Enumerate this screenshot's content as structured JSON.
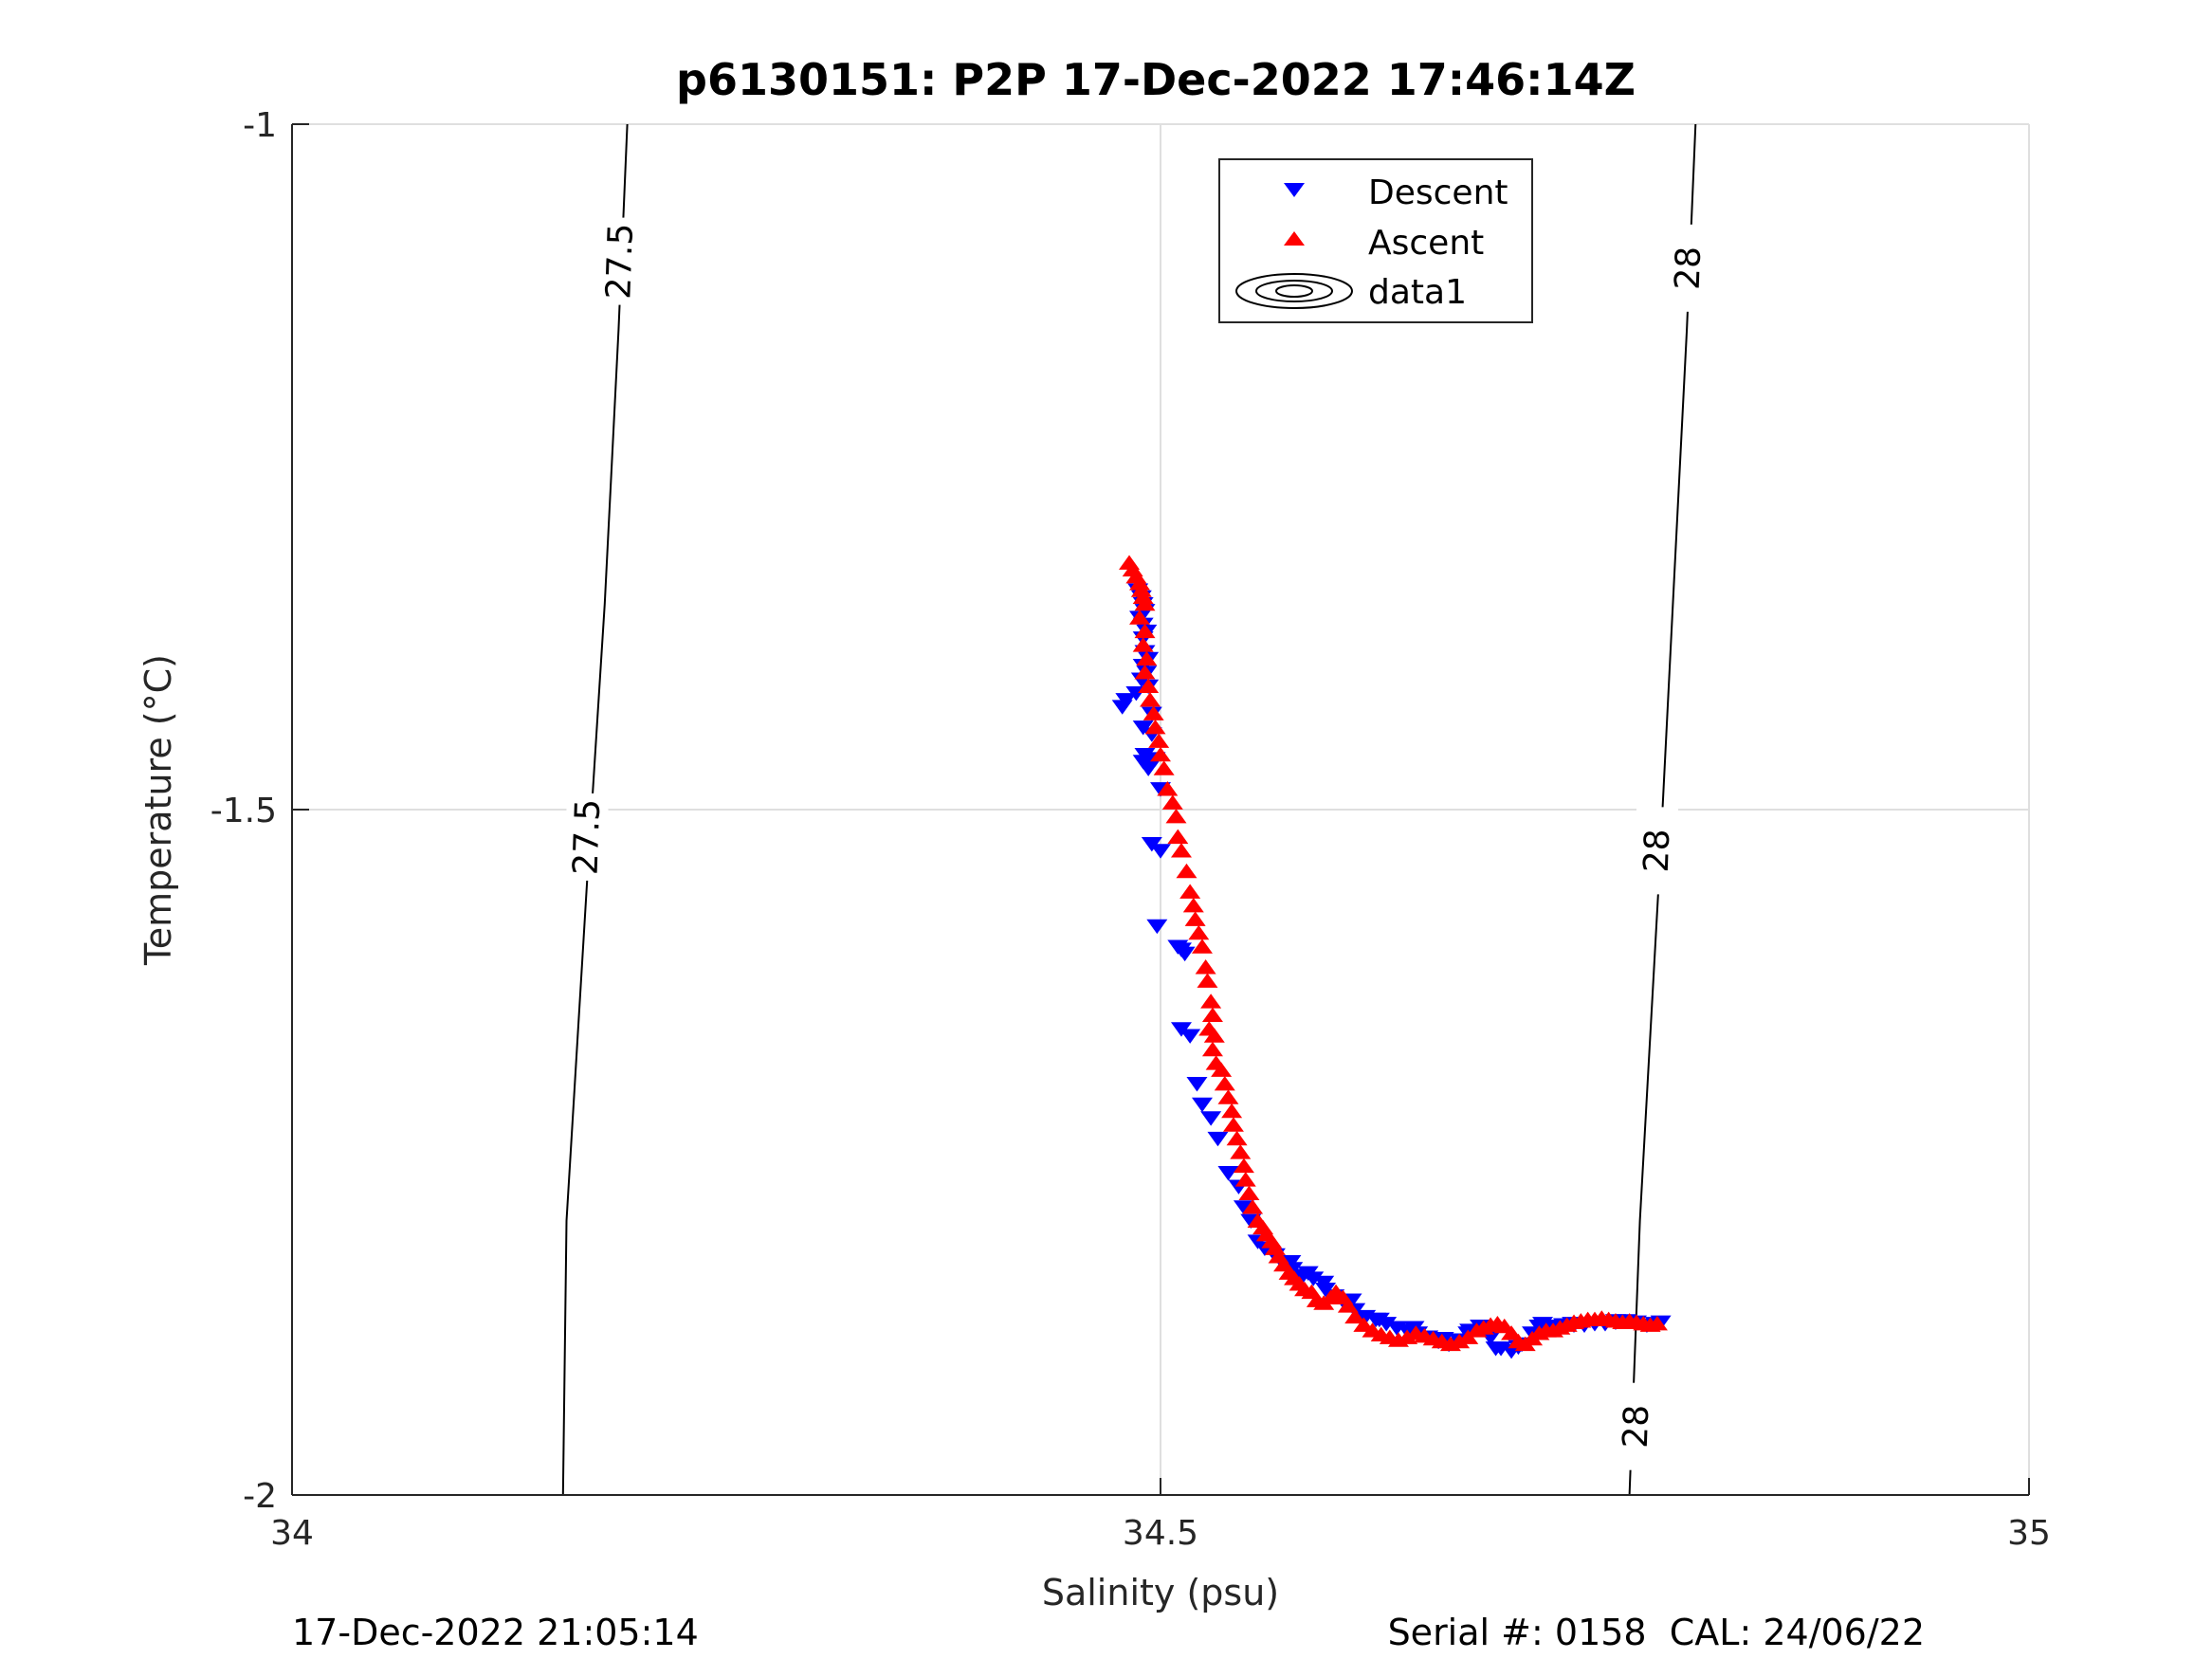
{
  "chart_data": {
    "type": "scatter",
    "title": "p6130151: P2P 17-Dec-2022 17:46:14Z",
    "xlabel": "Salinity (psu)",
    "ylabel": "Temperature (°C)",
    "xlim": [
      34,
      35
    ],
    "ylim": [
      -2,
      -1
    ],
    "xticks": [
      34,
      34.5,
      35
    ],
    "yticks": [
      -2,
      -1.5,
      -1
    ],
    "xtick_labels": [
      "34",
      "34.5",
      "35"
    ],
    "ytick_labels": [
      "-2",
      "-1.5",
      "-1"
    ],
    "grid": true,
    "legend": {
      "position": "top-center",
      "entries": [
        {
          "label": "Descent",
          "marker": "triangle-down",
          "color": "#0000ff"
        },
        {
          "label": "Ascent",
          "marker": "triangle-up",
          "color": "#ff0000"
        },
        {
          "label": "data1",
          "marker": "contour",
          "color": "#000000"
        }
      ]
    },
    "contours": [
      {
        "level": "27.5",
        "points": [
          [
            34.193,
            -1.0
          ],
          [
            34.188,
            -1.15
          ],
          [
            34.18,
            -1.35
          ],
          [
            34.17,
            -1.55
          ],
          [
            34.158,
            -1.8
          ],
          [
            34.156,
            -2.0
          ]
        ],
        "labels": [
          {
            "text": "27.5",
            "x": 34.189,
            "y": -1.1
          },
          {
            "text": "27.5",
            "x": 34.17,
            "y": -1.52
          }
        ]
      },
      {
        "level": "28",
        "points": [
          [
            34.808,
            -1.0
          ],
          [
            34.803,
            -1.15
          ],
          [
            34.795,
            -1.35
          ],
          [
            34.787,
            -1.55
          ],
          [
            34.776,
            -1.8
          ],
          [
            34.77,
            -2.0
          ]
        ],
        "labels": [
          {
            "text": "28",
            "x": 34.804,
            "y": -1.105
          },
          {
            "text": "28",
            "x": 34.786,
            "y": -1.53
          },
          {
            "text": "28",
            "x": 34.774,
            "y": -1.95
          }
        ]
      }
    ],
    "series": [
      {
        "name": "Descent",
        "marker": "triangle-down",
        "color": "#0000ff",
        "points": [
          [
            34.487,
            -1.34
          ],
          [
            34.489,
            -1.345
          ],
          [
            34.49,
            -1.35
          ],
          [
            34.491,
            -1.355
          ],
          [
            34.488,
            -1.36
          ],
          [
            34.49,
            -1.365
          ],
          [
            34.492,
            -1.37
          ],
          [
            34.49,
            -1.375
          ],
          [
            34.491,
            -1.385
          ],
          [
            34.493,
            -1.39
          ],
          [
            34.49,
            -1.395
          ],
          [
            34.492,
            -1.4
          ],
          [
            34.489,
            -1.405
          ],
          [
            34.493,
            -1.41
          ],
          [
            34.486,
            -1.415
          ],
          [
            34.48,
            -1.42
          ],
          [
            34.478,
            -1.425
          ],
          [
            34.495,
            -1.43
          ],
          [
            34.49,
            -1.44
          ],
          [
            34.495,
            -1.445
          ],
          [
            34.491,
            -1.46
          ],
          [
            34.49,
            -1.465
          ],
          [
            34.494,
            -1.465
          ],
          [
            34.497,
            -1.463
          ],
          [
            34.493,
            -1.47
          ],
          [
            34.5,
            -1.485
          ],
          [
            34.495,
            -1.525
          ],
          [
            34.5,
            -1.53
          ],
          [
            34.498,
            -1.585
          ],
          [
            34.51,
            -1.6
          ],
          [
            34.512,
            -1.602
          ],
          [
            34.514,
            -1.605
          ],
          [
            34.512,
            -1.66
          ],
          [
            34.517,
            -1.665
          ],
          [
            34.521,
            -1.7
          ],
          [
            34.524,
            -1.715
          ],
          [
            34.529,
            -1.725
          ],
          [
            34.533,
            -1.74
          ],
          [
            34.539,
            -1.765
          ],
          [
            34.545,
            -1.775
          ],
          [
            34.548,
            -1.79
          ],
          [
            34.552,
            -1.8
          ],
          [
            34.556,
            -1.815
          ],
          [
            34.56,
            -1.82
          ],
          [
            34.566,
            -1.825
          ],
          [
            34.57,
            -1.83
          ],
          [
            34.576,
            -1.835
          ],
          [
            34.582,
            -1.84
          ],
          [
            34.588,
            -1.842
          ],
          [
            34.594,
            -1.845
          ],
          [
            34.6,
            -1.855
          ],
          [
            34.606,
            -1.86
          ],
          [
            34.612,
            -1.865
          ],
          [
            34.618,
            -1.87
          ],
          [
            34.624,
            -1.872
          ],
          [
            34.63,
            -1.875
          ],
          [
            34.636,
            -1.878
          ],
          [
            34.642,
            -1.88
          ],
          [
            34.648,
            -1.882
          ],
          [
            34.654,
            -1.885
          ],
          [
            34.66,
            -1.888
          ],
          [
            34.666,
            -1.89
          ],
          [
            34.672,
            -1.887
          ],
          [
            34.678,
            -1.88
          ],
          [
            34.684,
            -1.877
          ],
          [
            34.69,
            -1.885
          ],
          [
            34.696,
            -1.893
          ],
          [
            34.702,
            -1.895
          ],
          [
            34.708,
            -1.89
          ],
          [
            34.714,
            -1.882
          ],
          [
            34.72,
            -1.875
          ],
          [
            34.726,
            -1.877
          ],
          [
            34.732,
            -1.876
          ],
          [
            34.738,
            -1.876
          ],
          [
            34.744,
            -1.876
          ],
          [
            34.75,
            -1.875
          ],
          [
            34.756,
            -1.875
          ],
          [
            34.762,
            -1.874
          ],
          [
            34.768,
            -1.873
          ],
          [
            34.774,
            -1.874
          ],
          [
            34.78,
            -1.876
          ],
          [
            34.785,
            -1.875
          ],
          [
            34.788,
            -1.874
          ],
          [
            34.575,
            -1.83
          ],
          [
            34.585,
            -1.838
          ],
          [
            34.595,
            -1.85
          ],
          [
            34.61,
            -1.858
          ],
          [
            34.626,
            -1.872
          ],
          [
            34.646,
            -1.878
          ],
          [
            34.663,
            -1.886
          ],
          [
            34.677,
            -1.882
          ],
          [
            34.693,
            -1.893
          ],
          [
            34.706,
            -1.892
          ],
          [
            34.718,
            -1.877
          ],
          [
            34.737,
            -1.875
          ],
          [
            34.762,
            -1.873
          ]
        ]
      },
      {
        "name": "Ascent",
        "marker": "triangle-up",
        "color": "#ff0000",
        "points": [
          [
            34.482,
            -1.32
          ],
          [
            34.484,
            -1.325
          ],
          [
            34.486,
            -1.33
          ],
          [
            34.488,
            -1.335
          ],
          [
            34.489,
            -1.34
          ],
          [
            34.49,
            -1.345
          ],
          [
            34.491,
            -1.35
          ],
          [
            34.488,
            -1.36
          ],
          [
            34.491,
            -1.37
          ],
          [
            34.49,
            -1.38
          ],
          [
            34.492,
            -1.39
          ],
          [
            34.491,
            -1.4
          ],
          [
            34.493,
            -1.41
          ],
          [
            34.494,
            -1.42
          ],
          [
            34.496,
            -1.43
          ],
          [
            34.497,
            -1.44
          ],
          [
            34.499,
            -1.45
          ],
          [
            34.5,
            -1.46
          ],
          [
            34.502,
            -1.47
          ],
          [
            34.504,
            -1.485
          ],
          [
            34.507,
            -1.495
          ],
          [
            34.509,
            -1.505
          ],
          [
            34.51,
            -1.52
          ],
          [
            34.512,
            -1.53
          ],
          [
            34.515,
            -1.545
          ],
          [
            34.517,
            -1.56
          ],
          [
            34.519,
            -1.57
          ],
          [
            34.52,
            -1.58
          ],
          [
            34.522,
            -1.59
          ],
          [
            34.524,
            -1.6
          ],
          [
            34.526,
            -1.615
          ],
          [
            34.527,
            -1.625
          ],
          [
            34.529,
            -1.64
          ],
          [
            34.53,
            -1.65
          ],
          [
            34.528,
            -1.66
          ],
          [
            34.531,
            -1.665
          ],
          [
            34.53,
            -1.675
          ],
          [
            34.532,
            -1.685
          ],
          [
            34.535,
            -1.69
          ],
          [
            34.537,
            -1.7
          ],
          [
            34.539,
            -1.71
          ],
          [
            34.541,
            -1.72
          ],
          [
            34.542,
            -1.73
          ],
          [
            34.544,
            -1.74
          ],
          [
            34.546,
            -1.75
          ],
          [
            34.548,
            -1.76
          ],
          [
            34.549,
            -1.77
          ],
          [
            34.551,
            -1.78
          ],
          [
            34.553,
            -1.79
          ],
          [
            34.556,
            -1.8
          ],
          [
            34.559,
            -1.805
          ],
          [
            34.561,
            -1.81
          ],
          [
            34.564,
            -1.815
          ],
          [
            34.566,
            -1.82
          ],
          [
            34.568,
            -1.826
          ],
          [
            34.571,
            -1.832
          ],
          [
            34.574,
            -1.838
          ],
          [
            34.577,
            -1.842
          ],
          [
            34.58,
            -1.846
          ],
          [
            34.583,
            -1.85
          ],
          [
            34.587,
            -1.852
          ],
          [
            34.59,
            -1.858
          ],
          [
            34.594,
            -1.86
          ],
          [
            34.598,
            -1.856
          ],
          [
            34.601,
            -1.852
          ],
          [
            34.605,
            -1.856
          ],
          [
            34.608,
            -1.862
          ],
          [
            34.612,
            -1.87
          ],
          [
            34.617,
            -1.876
          ],
          [
            34.622,
            -1.88
          ],
          [
            34.627,
            -1.883
          ],
          [
            34.632,
            -1.885
          ],
          [
            34.637,
            -1.887
          ],
          [
            34.642,
            -1.885
          ],
          [
            34.647,
            -1.882
          ],
          [
            34.652,
            -1.884
          ],
          [
            34.657,
            -1.886
          ],
          [
            34.662,
            -1.888
          ],
          [
            34.667,
            -1.89
          ],
          [
            34.672,
            -1.888
          ],
          [
            34.677,
            -1.885
          ],
          [
            34.682,
            -1.88
          ],
          [
            34.686,
            -1.878
          ],
          [
            34.69,
            -1.876
          ],
          [
            34.694,
            -1.875
          ],
          [
            34.698,
            -1.877
          ],
          [
            34.702,
            -1.882
          ],
          [
            34.706,
            -1.888
          ],
          [
            34.71,
            -1.89
          ],
          [
            34.714,
            -1.886
          ],
          [
            34.718,
            -1.882
          ],
          [
            34.722,
            -1.88
          ],
          [
            34.726,
            -1.88
          ],
          [
            34.73,
            -1.878
          ],
          [
            34.734,
            -1.876
          ],
          [
            34.738,
            -1.874
          ],
          [
            34.742,
            -1.873
          ],
          [
            34.746,
            -1.872
          ],
          [
            34.75,
            -1.872
          ],
          [
            34.754,
            -1.871
          ],
          [
            34.758,
            -1.872
          ],
          [
            34.762,
            -1.873
          ],
          [
            34.766,
            -1.874
          ],
          [
            34.77,
            -1.873
          ],
          [
            34.774,
            -1.874
          ],
          [
            34.778,
            -1.875
          ],
          [
            34.782,
            -1.876
          ],
          [
            34.786,
            -1.875
          ]
        ]
      }
    ]
  },
  "footer": {
    "left": "17-Dec-2022 21:05:14",
    "right": "Serial #: 0158  CAL: 24/06/22"
  }
}
